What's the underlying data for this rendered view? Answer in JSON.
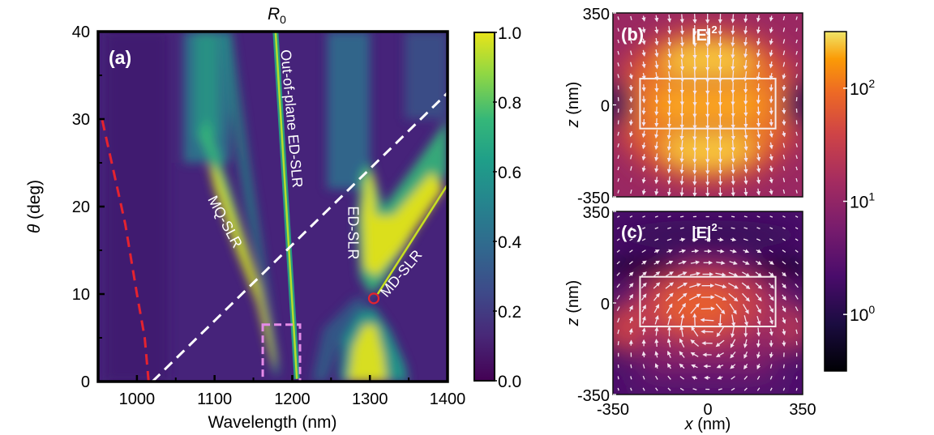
{
  "chart_data": [
    {
      "panel": "(a)",
      "type": "heatmap",
      "title": "R",
      "title_subscript": "0",
      "xlabel": "Wavelength (nm)",
      "ylabel_symbol": "θ",
      "ylabel_rest": " (deg)",
      "xlim": [
        950,
        1400
      ],
      "ylim": [
        0,
        40
      ],
      "xticks": [
        1000,
        1100,
        1200,
        1300,
        1400
      ],
      "xticks_minor": [
        1050,
        1150,
        1250,
        1350
      ],
      "yticks": [
        0,
        10,
        20,
        30,
        40
      ],
      "yticks_minor": [
        5,
        15,
        25,
        35
      ],
      "colormap": "viridis",
      "colorbar": {
        "min": 0.0,
        "max": 1.0,
        "ticks": [
          "0.0",
          "0.2",
          "0.4",
          "0.6",
          "0.8",
          "1.0"
        ]
      },
      "bands": [
        {
          "name": "MQ-SLR",
          "points": [
            [
              1175,
              0.5
            ],
            [
              1150,
              11
            ],
            [
              1105,
              20
            ],
            [
              1090,
              22.5
            ],
            [
              1080,
              28
            ],
            [
              1080,
              40
            ]
          ]
        },
        {
          "name": "Out-of-plane ED-SLR",
          "points": [
            [
              1205,
              0.5
            ],
            [
              1175,
              40
            ]
          ]
        },
        {
          "name": "Inner branch",
          "points": [
            [
              1178,
              0.5
            ],
            [
              1160,
              10
            ],
            [
              1140,
              20
            ],
            [
              1110,
              40
            ]
          ]
        },
        {
          "name": "ED-SLR",
          "points": [
            [
              1300,
              12
            ],
            [
              1300,
              24
            ],
            [
              1320,
              40
            ]
          ]
        },
        {
          "name": "MD-SLR",
          "points": [
            [
              1305,
              9.5
            ],
            [
              1400,
              22
            ]
          ]
        },
        {
          "name": "Lower lobe",
          "points": [
            [
              1295,
              0
            ],
            [
              1300,
              8
            ]
          ]
        }
      ],
      "annotations": [
        {
          "text": "MQ-SLR",
          "x": 1108,
          "y": 18,
          "angle_deg": 62
        },
        {
          "text": "Out-of-plane ED-SLR",
          "x": 1193,
          "y": 30,
          "angle_deg": 85
        },
        {
          "text": "ED-SLR",
          "x": 1272,
          "y": 17,
          "angle_deg": 90
        },
        {
          "text": "MD-SLR",
          "x": 1345,
          "y": 12,
          "angle_deg": -50
        }
      ],
      "red_dashed_curve": {
        "label": "Rayleigh anomaly",
        "points": [
          [
            1015,
            0
          ],
          [
            1010,
            5
          ],
          [
            1000,
            10
          ],
          [
            985,
            18
          ],
          [
            970,
            24
          ],
          [
            955,
            30
          ]
        ]
      },
      "white_dashed_line": {
        "points": [
          [
            1020,
            0
          ],
          [
            1400,
            33
          ]
        ]
      },
      "red_circle_marker": {
        "x": 1305,
        "y": 9.5
      },
      "pink_dashed_box": {
        "x": [
          1162,
          1210
        ],
        "y": [
          0,
          6.5
        ]
      }
    },
    {
      "panel": "(b)",
      "type": "heatmap",
      "title": "|E|",
      "title_superscript": "2",
      "xlim": [
        -350,
        350
      ],
      "ylim": [
        -350,
        350
      ],
      "ylabel": "z (nm)",
      "yticks": [
        "-350",
        "0",
        "350"
      ],
      "colormap": "inferno",
      "field_pattern": "vertical dipole: arrows point downward, hotspot centered",
      "particle_box": {
        "x": [
          -250,
          250
        ],
        "z": [
          -90,
          100
        ]
      }
    },
    {
      "panel": "(c)",
      "type": "heatmap",
      "title": "|E|",
      "title_superscript": "2",
      "xlim": [
        -350,
        350
      ],
      "ylim": [
        -350,
        350
      ],
      "xlabel": "x (nm)",
      "ylabel": "z (nm)",
      "xticks": [
        "-350",
        "0",
        "350"
      ],
      "yticks": [
        "-350",
        "0",
        "350"
      ],
      "colormap": "inferno",
      "field_pattern": "circulating: arrows point right inside particle, loop around",
      "particle_box": {
        "x": [
          -250,
          250
        ],
        "z": [
          -90,
          100
        ]
      }
    }
  ],
  "colorbar_bc": {
    "scale": "log",
    "min_exp": -0.5,
    "max_exp": 2.5,
    "ticks": [
      {
        "base": "10",
        "exp": "2"
      },
      {
        "base": "10",
        "exp": "1"
      },
      {
        "base": "10",
        "exp": "0"
      }
    ]
  }
}
